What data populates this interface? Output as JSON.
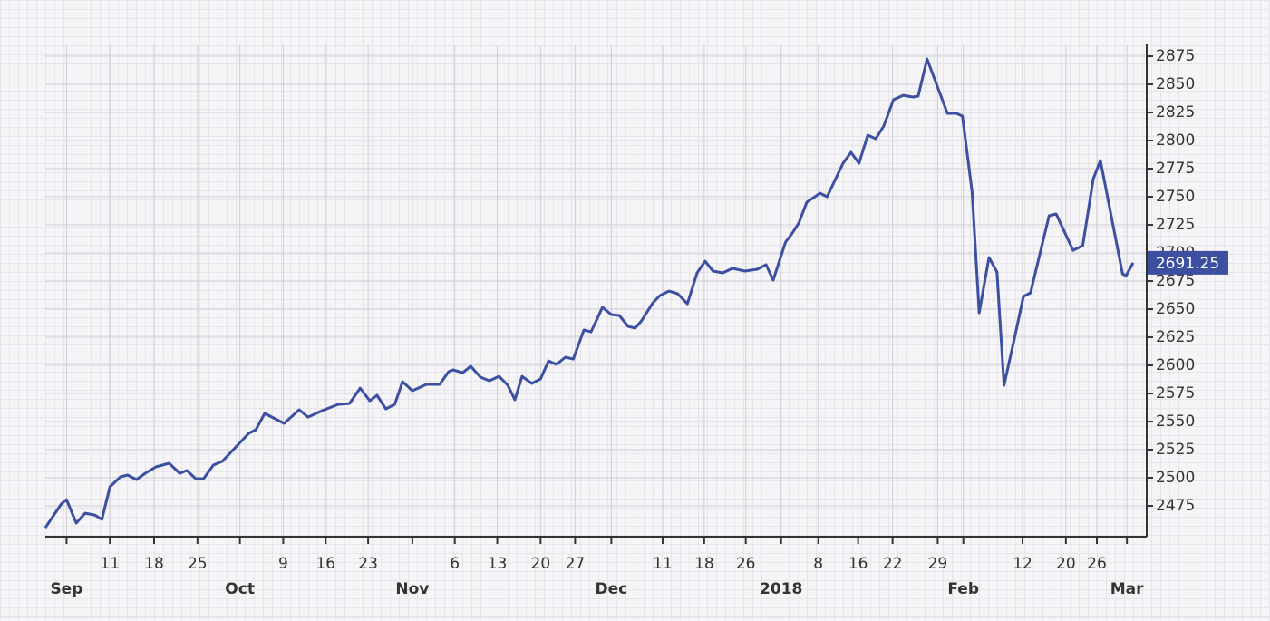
{
  "chart_data": {
    "type": "line",
    "x": [
      0,
      1.8,
      2.4,
      3.5,
      4.5,
      5.6,
      6.4,
      7.3,
      8.5,
      9.3,
      10.3,
      11.3,
      12.5,
      14.0,
      15.2,
      16.0,
      17.0,
      17.9,
      19.0,
      20.0,
      23.0,
      23.8,
      24.8,
      27.0,
      28.7,
      29.7,
      31.3,
      33.1,
      34.4,
      35.6,
      36.7,
      37.5,
      38.5,
      39.5,
      40.4,
      41.5,
      43.1,
      44.6,
      45.6,
      46.1,
      47.2,
      48.1,
      49.2,
      50.2,
      51.3,
      52.3,
      53.1,
      53.9,
      55.0,
      56.0,
      56.9,
      57.8,
      58.8,
      59.7,
      60.9,
      61.7,
      63.0,
      64.0,
      64.9,
      65.9,
      66.7,
      67.4,
      68.7,
      69.5,
      70.5,
      71.5,
      72.6,
      73.7,
      74.6,
      75.5,
      76.6,
      77.7,
      79.1,
      80.5,
      81.5,
      82.3,
      83.7,
      84.4,
      85.2,
      86.1,
      87.6,
      88.4,
      90.2,
      91.1,
      92.0,
      93.0,
      93.9,
      94.8,
      95.9,
      97.0,
      98.1,
      98.7,
      99.7,
      101.2,
      102.0,
      103.0,
      103.7,
      104.8,
      105.6,
      106.7,
      107.6,
      108.4,
      109.7,
      110.6,
      111.4,
      113.5,
      114.3,
      116.2,
      117.3,
      118.5,
      119.3,
      121.8,
      122.2,
      123.0
    ],
    "series": [
      {
        "color": "#3d4fa1",
        "values": [
          2455.6,
          2476.6,
          2480.6,
          2459.7,
          2468.5,
          2466.9,
          2462.9,
          2491.9,
          2500.8,
          2502.4,
          2498.4,
          2504,
          2509.7,
          2512.9,
          2504,
          2506.5,
          2499.2,
          2499.2,
          2511.3,
          2514.5,
          2539.5,
          2542.7,
          2557.3,
          2548.4,
          2560.5,
          2554,
          2559.7,
          2565.3,
          2566.1,
          2579.8,
          2568.5,
          2573.4,
          2561.3,
          2565.3,
          2585.5,
          2577.4,
          2583.1,
          2583.1,
          2594.4,
          2596,
          2593.5,
          2599.2,
          2589.5,
          2586.3,
          2590.3,
          2582.3,
          2569.4,
          2590.3,
          2583.9,
          2587.9,
          2604,
          2600.8,
          2607.3,
          2605.6,
          2631.5,
          2629.8,
          2651.6,
          2645.2,
          2644.4,
          2634.7,
          2633.1,
          2639.5,
          2655.6,
          2662.1,
          2666.1,
          2663.7,
          2654.8,
          2682.3,
          2692.7,
          2683.9,
          2682.3,
          2686.3,
          2683.9,
          2685.5,
          2689.5,
          2675.8,
          2709.7,
          2716.9,
          2726.6,
          2745.2,
          2753.2,
          2750,
          2779.8,
          2789.5,
          2779.8,
          2804.8,
          2801.6,
          2812.9,
          2836.3,
          2840.3,
          2838.7,
          2839.5,
          2872.6,
          2841.1,
          2824.2,
          2824.2,
          2821.8,
          2754,
          2646.8,
          2696,
          2683.1,
          2582.3,
          2628.2,
          2661.3,
          2664.5,
          2733.1,
          2734.7,
          2702.4,
          2706.5,
          2766.1,
          2782.3,
          2681.5,
          2679.8,
          2691.25
        ]
      }
    ],
    "xlim": [
      0,
      123
    ],
    "xticks": [
      {
        "value": 7.3,
        "label": "11"
      },
      {
        "value": 12.3,
        "label": "18"
      },
      {
        "value": 17.2,
        "label": "25"
      },
      {
        "value": 26.9,
        "label": "9"
      },
      {
        "value": 31.7,
        "label": "16"
      },
      {
        "value": 36.5,
        "label": "23"
      },
      {
        "value": 46.3,
        "label": "6"
      },
      {
        "value": 51.1,
        "label": "13"
      },
      {
        "value": 56.0,
        "label": "20"
      },
      {
        "value": 59.9,
        "label": "27"
      },
      {
        "value": 69.8,
        "label": "11"
      },
      {
        "value": 74.5,
        "label": "18"
      },
      {
        "value": 79.2,
        "label": "26"
      },
      {
        "value": 87.4,
        "label": "8"
      },
      {
        "value": 91.9,
        "label": "16"
      },
      {
        "value": 95.8,
        "label": "22"
      },
      {
        "value": 100.9,
        "label": "29"
      },
      {
        "value": 110.5,
        "label": "12"
      },
      {
        "value": 115.4,
        "label": "20"
      },
      {
        "value": 118.9,
        "label": "26"
      }
    ],
    "x_month_ticks": [
      {
        "value": 2.4,
        "label": "Sep"
      },
      {
        "value": 22.0,
        "label": "Oct"
      },
      {
        "value": 41.5,
        "label": "Nov"
      },
      {
        "value": 64.0,
        "label": "Dec"
      },
      {
        "value": 83.2,
        "label": "2018"
      },
      {
        "value": 103.8,
        "label": "Feb"
      },
      {
        "value": 122.3,
        "label": "Mar"
      }
    ],
    "ylim": [
      2447.6,
      2884.7
    ],
    "yticks": [
      2475,
      2500,
      2525,
      2550,
      2575,
      2600,
      2625,
      2650,
      2675,
      2700,
      2725,
      2750,
      2775,
      2800,
      2825,
      2850,
      2875
    ],
    "grid": true
  }
}
